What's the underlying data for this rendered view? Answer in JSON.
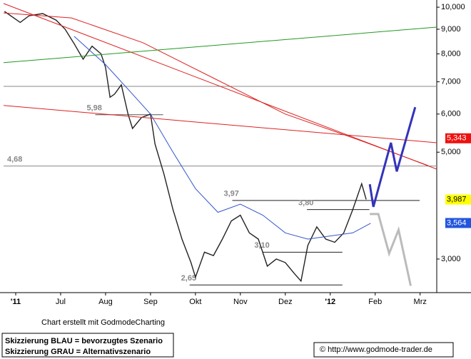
{
  "chart_data": {
    "type": "line",
    "xlim": [
      -0.27,
      9.37
    ],
    "xticks": [
      {
        "value": 0,
        "label": "'11"
      },
      {
        "value": 1,
        "label": "Jul"
      },
      {
        "value": 2,
        "label": "Aug"
      },
      {
        "value": 3,
        "label": "Sep"
      },
      {
        "value": 4,
        "label": "Okt"
      },
      {
        "value": 5,
        "label": "Nov"
      },
      {
        "value": 6,
        "label": "Dez"
      },
      {
        "value": 7,
        "label": "'12"
      },
      {
        "value": 8,
        "label": "Feb"
      },
      {
        "value": 9,
        "label": "Mrz"
      }
    ],
    "ylim": [
      2.555,
      10.35
    ],
    "log_y": true,
    "yticks": [
      {
        "value": 3,
        "label": "3,000"
      },
      {
        "value": 5,
        "label": "5,000"
      },
      {
        "value": 6,
        "label": "6,000"
      },
      {
        "value": 7,
        "label": "7,000"
      },
      {
        "value": 8,
        "label": "8,000"
      },
      {
        "value": 9,
        "label": "9,000"
      },
      {
        "value": 10,
        "label": "10,000"
      }
    ],
    "series": [
      {
        "color": "#222222",
        "width": 1.4,
        "x": [
          -0.25,
          0.1,
          0.3,
          0.6,
          0.9,
          1.1,
          1.3,
          1.5,
          1.7,
          1.9,
          2.0,
          2.1,
          2.2,
          2.35,
          2.5,
          2.6,
          2.8,
          3.0,
          3.1,
          3.3,
          3.5,
          3.7,
          3.9,
          4.0,
          4.2,
          4.4,
          4.6,
          4.8,
          5.0,
          5.2,
          5.4,
          5.6,
          5.8,
          6.0,
          6.2,
          6.35,
          6.5,
          6.7,
          6.9,
          7.1,
          7.3,
          7.5,
          7.7,
          7.8
        ],
        "values": [
          9.8,
          9.3,
          9.6,
          9.7,
          9.4,
          9.0,
          8.4,
          7.8,
          8.3,
          8.0,
          7.5,
          6.5,
          6.6,
          6.9,
          6.0,
          5.6,
          5.9,
          6.0,
          5.2,
          4.5,
          3.8,
          3.3,
          2.95,
          2.75,
          3.1,
          3.05,
          3.3,
          3.6,
          3.7,
          3.4,
          3.3,
          2.9,
          3.0,
          2.95,
          2.8,
          2.7,
          3.2,
          3.5,
          3.3,
          3.25,
          3.4,
          3.8,
          4.3,
          3.99
        ]
      },
      {
        "color": "#3355cc",
        "width": 1,
        "x": [
          1.3,
          2.0,
          2.6,
          3.0,
          3.5,
          4.0,
          4.5,
          5.0,
          5.5,
          6.0,
          6.5,
          7.0,
          7.5,
          7.9
        ],
        "values": [
          8.7,
          7.6,
          6.6,
          6.0,
          5.0,
          4.2,
          3.75,
          3.9,
          3.7,
          3.4,
          3.3,
          3.35,
          3.4,
          3.56
        ]
      },
      {
        "color": "#dd2222",
        "width": 1,
        "x": [
          -0.27,
          1.24,
          2.83,
          4.42,
          6.0,
          7.59,
          9.18
        ],
        "values": [
          9.73,
          9.5,
          8.44,
          7.11,
          6.0,
          5.32,
          4.69
        ]
      },
      {
        "color": "#dd2222",
        "width": 1,
        "x": [
          -0.27,
          9.37
        ],
        "values": [
          10.18,
          4.61
        ]
      },
      {
        "color": "#dd2222",
        "width": 1,
        "x": [
          -0.27,
          9.37
        ],
        "values": [
          6.25,
          5.23
        ]
      },
      {
        "color": "#229922",
        "width": 1,
        "x": [
          -0.27,
          9.37
        ],
        "values": [
          7.67,
          9.09
        ]
      },
      {
        "color": "#3333bb",
        "width": 3,
        "x": [
          7.88,
          7.96,
          8.35,
          8.48,
          8.89
        ],
        "values": [
          4.29,
          3.85,
          5.23,
          4.56,
          6.2
        ]
      },
      {
        "color": "#bbbbbb",
        "width": 3,
        "x": [
          7.88,
          8.07,
          8.31,
          8.52,
          8.79
        ],
        "values": [
          3.72,
          3.72,
          3.08,
          3.45,
          2.64
        ]
      }
    ],
    "levels": [
      {
        "value": 6.85,
        "from": -0.27,
        "to": 9.37,
        "color": "#888888"
      },
      {
        "value": 4.68,
        "label": "4,68",
        "from": -0.27,
        "to": 9.37,
        "color": "#888888"
      },
      {
        "value": 5.98,
        "label": "5,98",
        "from": 1.77,
        "to": 3.28,
        "color": "#555555"
      },
      {
        "value": 3.97,
        "label": "3,97",
        "from": 4.82,
        "to": 8.99,
        "color": "#222222"
      },
      {
        "value": 3.8,
        "label": "3,80",
        "from": 6.48,
        "to": 7.87,
        "color": "#222222"
      },
      {
        "value": 3.1,
        "label": "3,10",
        "from": 5.5,
        "to": 7.27,
        "color": "#222222"
      },
      {
        "value": 2.65,
        "label": "2,65",
        "from": 3.87,
        "to": 7.27,
        "color": "#222222"
      }
    ],
    "price_tags": [
      {
        "value": 5.343,
        "label": "5,343",
        "color": "#ee1111",
        "text_color": "#ffffff"
      },
      {
        "value": 3.987,
        "label": "3,987",
        "color": "#ffff00",
        "text_color": "#000000"
      },
      {
        "value": 3.564,
        "label": "3,564",
        "color": "#2255dd",
        "text_color": "#ffffff"
      }
    ],
    "credit": "Chart erstellt mit GodmodeCharting",
    "legend_lines": [
      "Skizzierung BLAU = bevorzugtes Szenario",
      "Skizzierung GRAU = Alternativszenario"
    ],
    "copyright": "© http://www.godmode-trader.de"
  }
}
